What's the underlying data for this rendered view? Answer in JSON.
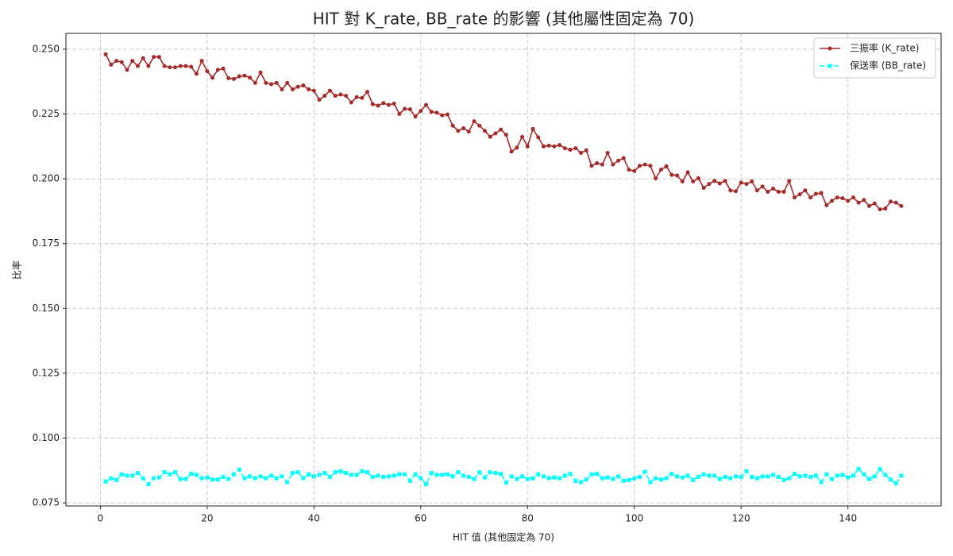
{
  "chart_data": {
    "type": "line",
    "title": "HIT 對 K_rate, BB_rate 的影響 (其他屬性固定為 70)",
    "xlabel": "HIT 值 (其他固定為 70)",
    "ylabel": "比率",
    "x": [
      1,
      2,
      3,
      4,
      5,
      6,
      7,
      8,
      9,
      10,
      11,
      12,
      13,
      14,
      15,
      16,
      17,
      18,
      19,
      20,
      21,
      22,
      23,
      24,
      25,
      26,
      27,
      28,
      29,
      30,
      31,
      32,
      33,
      34,
      35,
      36,
      37,
      38,
      39,
      40,
      41,
      42,
      43,
      44,
      45,
      46,
      47,
      48,
      49,
      50,
      51,
      52,
      53,
      54,
      55,
      56,
      57,
      58,
      59,
      60,
      61,
      62,
      63,
      64,
      65,
      66,
      67,
      68,
      69,
      70,
      71,
      72,
      73,
      74,
      75,
      76,
      77,
      78,
      79,
      80,
      81,
      82,
      83,
      84,
      85,
      86,
      87,
      88,
      89,
      90,
      91,
      92,
      93,
      94,
      95,
      96,
      97,
      98,
      99,
      100,
      101,
      102,
      103,
      104,
      105,
      106,
      107,
      108,
      109,
      110,
      111,
      112,
      113,
      114,
      115,
      116,
      117,
      118,
      119,
      120,
      121,
      122,
      123,
      124,
      125,
      126,
      127,
      128,
      129,
      130,
      131,
      132,
      133,
      134,
      135,
      136,
      137,
      138,
      139,
      140,
      141,
      142,
      143,
      144,
      145,
      146,
      147,
      148,
      149,
      150
    ],
    "series": [
      {
        "name": "三振率 (K_rate)",
        "color": "#a52a2a",
        "linestyle": "solid",
        "marker": "circle",
        "values": [
          0.248,
          0.244,
          0.2455,
          0.245,
          0.242,
          0.2455,
          0.2435,
          0.2465,
          0.2435,
          0.247,
          0.247,
          0.2435,
          0.243,
          0.243,
          0.2435,
          0.2435,
          0.2432,
          0.2405,
          0.2455,
          0.2415,
          0.239,
          0.242,
          0.2425,
          0.2388,
          0.2385,
          0.2395,
          0.2398,
          0.239,
          0.237,
          0.241,
          0.237,
          0.2365,
          0.237,
          0.2345,
          0.237,
          0.2345,
          0.2355,
          0.236,
          0.2345,
          0.234,
          0.2305,
          0.232,
          0.234,
          0.232,
          0.2325,
          0.232,
          0.2295,
          0.2315,
          0.2312,
          0.2335,
          0.2288,
          0.2282,
          0.2292,
          0.2285,
          0.229,
          0.225,
          0.227,
          0.2268,
          0.224,
          0.2262,
          0.2285,
          0.2258,
          0.2255,
          0.2245,
          0.2248,
          0.2205,
          0.2185,
          0.2195,
          0.2182,
          0.2222,
          0.2205,
          0.2185,
          0.2162,
          0.2175,
          0.219,
          0.217,
          0.2105,
          0.212,
          0.2162,
          0.2125,
          0.2192,
          0.216,
          0.2125,
          0.2128,
          0.2125,
          0.213,
          0.2118,
          0.2112,
          0.2118,
          0.21,
          0.211,
          0.205,
          0.206,
          0.2055,
          0.21,
          0.2055,
          0.207,
          0.208,
          0.2035,
          0.203,
          0.205,
          0.2055,
          0.205,
          0.2002,
          0.2035,
          0.2048,
          0.2015,
          0.2013,
          0.199,
          0.2025,
          0.199,
          0.2002,
          0.1965,
          0.198,
          0.1992,
          0.1982,
          0.1992,
          0.1955,
          0.1952,
          0.1985,
          0.198,
          0.199,
          0.1955,
          0.197,
          0.195,
          0.1962,
          0.195,
          0.195,
          0.1992,
          0.1928,
          0.194,
          0.1955,
          0.1928,
          0.1942,
          0.1945,
          0.1898,
          0.1915,
          0.1928,
          0.1925,
          0.1915,
          0.1928,
          0.1908,
          0.1918,
          0.1895,
          0.1905,
          0.1882,
          0.1885,
          0.1912,
          0.1908,
          0.1895
        ]
      },
      {
        "name": "保送率 (BB_rate)",
        "color": "#00ffff",
        "linestyle": "dashed",
        "marker": "square",
        "values": [
          0.0832,
          0.0845,
          0.0838,
          0.086,
          0.0855,
          0.0855,
          0.0865,
          0.0845,
          0.0822,
          0.0845,
          0.0848,
          0.0868,
          0.086,
          0.0868,
          0.0842,
          0.0842,
          0.0862,
          0.0858,
          0.0845,
          0.0848,
          0.084,
          0.084,
          0.085,
          0.0842,
          0.086,
          0.0878,
          0.0845,
          0.0852,
          0.0845,
          0.0852,
          0.0845,
          0.0855,
          0.0845,
          0.0852,
          0.083,
          0.0865,
          0.0868,
          0.0845,
          0.086,
          0.0852,
          0.0858,
          0.0865,
          0.085,
          0.0868,
          0.0872,
          0.0865,
          0.0858,
          0.0858,
          0.0872,
          0.0868,
          0.085,
          0.0855,
          0.085,
          0.0852,
          0.0855,
          0.086,
          0.086,
          0.0835,
          0.086,
          0.0845,
          0.0822,
          0.0865,
          0.0858,
          0.0858,
          0.086,
          0.0852,
          0.0868,
          0.0855,
          0.085,
          0.0842,
          0.0868,
          0.0848,
          0.0868,
          0.0865,
          0.0862,
          0.0828,
          0.0852,
          0.0842,
          0.0852,
          0.0842,
          0.0845,
          0.086,
          0.0852,
          0.0845,
          0.0848,
          0.0845,
          0.0855,
          0.0862,
          0.0835,
          0.083,
          0.084,
          0.086,
          0.0862,
          0.0845,
          0.0848,
          0.0842,
          0.0852,
          0.0835,
          0.0838,
          0.0845,
          0.085,
          0.087,
          0.083,
          0.0845,
          0.084,
          0.0845,
          0.0862,
          0.0852,
          0.0848,
          0.0855,
          0.0838,
          0.085,
          0.086,
          0.0855,
          0.0855,
          0.0842,
          0.085,
          0.0845,
          0.0852,
          0.085,
          0.0872,
          0.085,
          0.0845,
          0.0852,
          0.0852,
          0.0858,
          0.085,
          0.0838,
          0.0845,
          0.0862,
          0.0852,
          0.0855,
          0.085,
          0.0855,
          0.083,
          0.086,
          0.0842,
          0.0855,
          0.0858,
          0.0848,
          0.0855,
          0.088,
          0.086,
          0.0842,
          0.0852,
          0.088,
          0.0858,
          0.084,
          0.0825,
          0.0855
        ]
      }
    ],
    "xlim": [
      -6.45,
      157.45
    ],
    "ylim": [
      0.0738,
      0.2561
    ],
    "xticks": [
      0,
      20,
      40,
      60,
      80,
      100,
      120,
      140
    ],
    "yticks": [
      0.075,
      {
        "value": 0.1,
        "label": "0.100"
      },
      0.125,
      {
        "value": 0.15,
        "label": "0.150"
      },
      0.175,
      {
        "value": 0.2,
        "label": "0.200"
      },
      0.225,
      {
        "value": 0.25,
        "label": "0.250"
      }
    ],
    "grid": true,
    "legend": "upper right"
  }
}
